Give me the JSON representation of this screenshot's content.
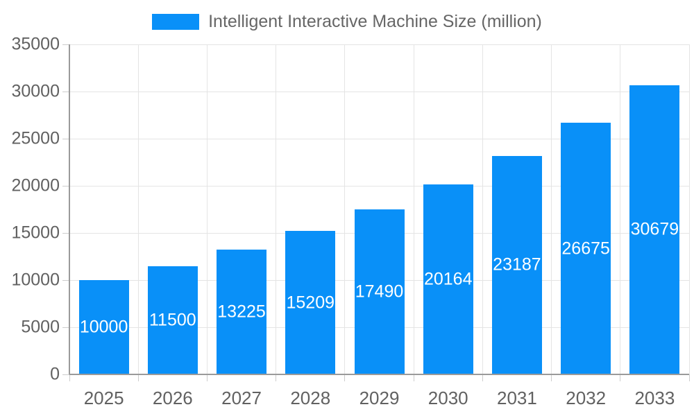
{
  "chart_data": {
    "type": "bar",
    "title": "Intelligent Interactive Machine Size (million)",
    "legend_position": "top",
    "grid": true,
    "categories": [
      "2025",
      "2026",
      "2027",
      "2028",
      "2029",
      "2030",
      "2031",
      "2032",
      "2033"
    ],
    "values": [
      10000,
      11500,
      13225,
      15209,
      17490,
      20164,
      23187,
      26675,
      30679
    ],
    "series": [
      {
        "name": "Intelligent Interactive Machine Size (million)",
        "values": [
          10000,
          11500,
          13225,
          15209,
          17490,
          20164,
          23187,
          26675,
          30679
        ]
      }
    ],
    "xlabel": "",
    "ylabel": "",
    "ylim": [
      0,
      35000
    ],
    "yticks": [
      0,
      5000,
      10000,
      15000,
      20000,
      25000,
      30000,
      35000
    ],
    "value_labels_shown": true,
    "colors": {
      "bar": "#0990f8",
      "gridline": "#e4e4e4",
      "tick": "#cccccc",
      "axis": "#9a9a9a",
      "axis_label_text": "#616161",
      "legend_text": "#666666",
      "value_label_text": "#ffffff",
      "background": "#ffffff"
    }
  }
}
